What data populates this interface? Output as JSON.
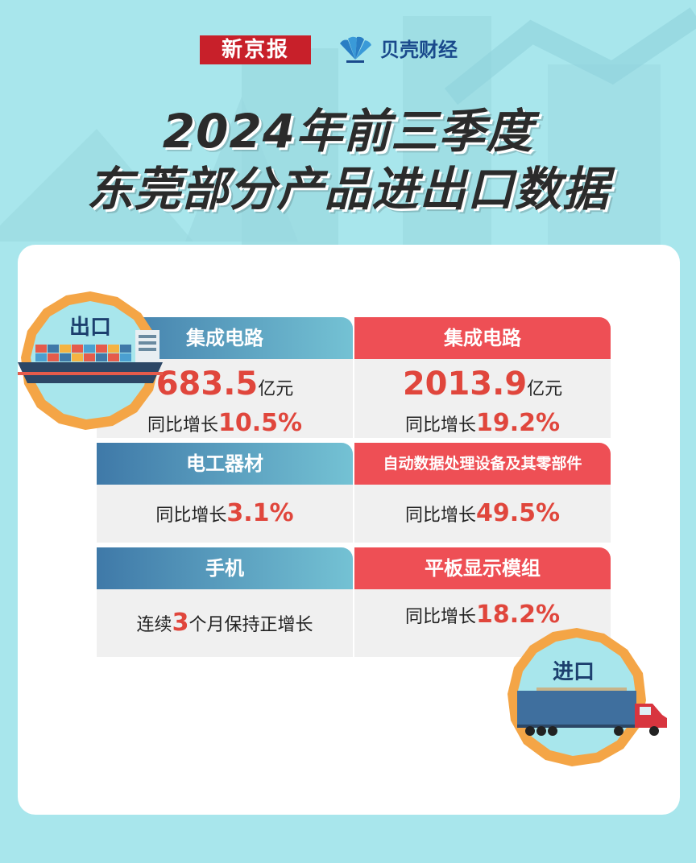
{
  "header": {
    "brand_bjnews": "新京报",
    "brand_beike": "贝壳财经",
    "title_line1": "2024年前三季度",
    "title_line2": "东莞部分产品进出口数据"
  },
  "export": {
    "badge_label": "出口",
    "items": [
      {
        "name": "集成电路",
        "value": "683.5",
        "unit": "亿元",
        "growth_prefix": "同比增长",
        "growth": "10.5%"
      },
      {
        "name": "电工器材",
        "growth_prefix": "同比增长",
        "growth": "3.1%"
      },
      {
        "name": "手机",
        "text_prefix": "连续",
        "number": "3",
        "text_suffix": "个月保持正增长"
      }
    ]
  },
  "import": {
    "badge_label": "进口",
    "items": [
      {
        "name": "集成电路",
        "value": "2013.9",
        "unit": "亿元",
        "growth_prefix": "同比增长",
        "growth": "19.2%"
      },
      {
        "name": "自动数据处理设备及其零部件",
        "growth_prefix": "同比增长",
        "growth": "49.5%"
      },
      {
        "name": "平板显示模组",
        "growth_prefix": "同比增长",
        "growth": "18.2%"
      }
    ]
  },
  "colors": {
    "background": "#a8e6ec",
    "export_header": "#3f79a8",
    "import_header": "#ee4f55",
    "highlight_number": "#e0463c",
    "badge_ring": "#f4a546"
  }
}
